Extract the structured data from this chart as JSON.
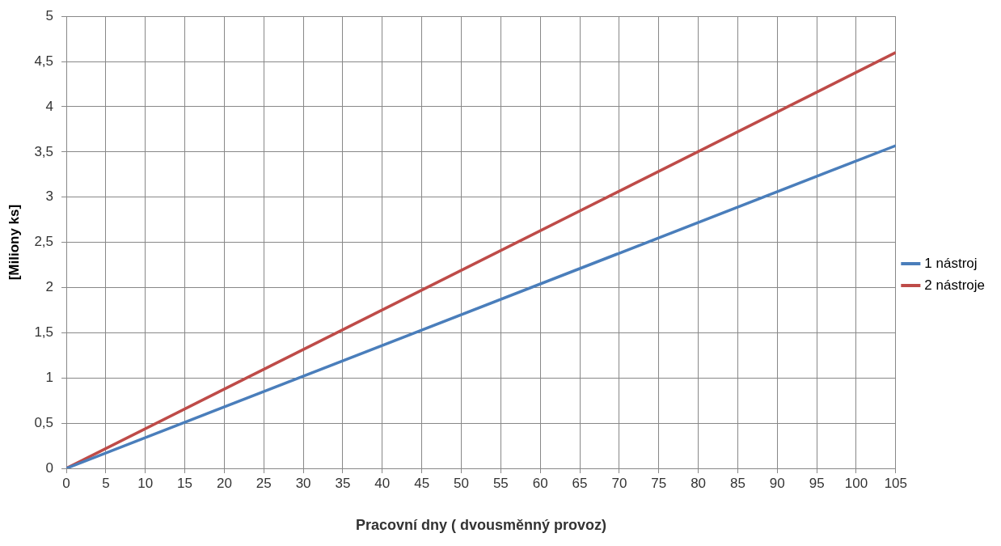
{
  "chart_data": {
    "type": "line",
    "xlabel": "Pracovní dny ( dvousměnný provoz)",
    "ylabel": "[Miliony ks]",
    "x": [
      0,
      105
    ],
    "series": [
      {
        "name": "1 nástroj",
        "color": "#4a7ebb",
        "values": [
          0,
          3.57
        ]
      },
      {
        "name": "2 nástroje",
        "color": "#be4b48",
        "values": [
          0,
          4.6
        ]
      }
    ],
    "xlim": [
      0,
      105
    ],
    "xticks": [
      0,
      5,
      10,
      15,
      20,
      25,
      30,
      35,
      40,
      45,
      50,
      55,
      60,
      65,
      70,
      75,
      80,
      85,
      90,
      95,
      100,
      105
    ],
    "ylim": [
      0,
      5
    ],
    "yticks": [
      0,
      {
        "value": 0.5,
        "label": "0,5"
      },
      1,
      {
        "value": 1.5,
        "label": "1,5"
      },
      2,
      {
        "value": 2.5,
        "label": "2,5"
      },
      3,
      {
        "value": 3.5,
        "label": "3,5"
      },
      4,
      {
        "value": 4.5,
        "label": "4,5"
      },
      5
    ],
    "grid": true,
    "legend": "right",
    "marker": "none",
    "line_style": "solid"
  }
}
